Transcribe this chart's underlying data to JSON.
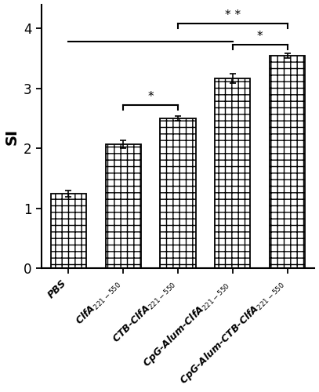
{
  "categories": [
    "PBS",
    "ClfA$_{221-550}$",
    "CTB-ClfA$_{221-550}$",
    "CpG-Alum-ClfA$_{221-550}$",
    "CpG-Alum-CTB-ClfA$_{221-550}$"
  ],
  "values": [
    1.25,
    2.07,
    2.5,
    3.17,
    3.55
  ],
  "errors": [
    0.05,
    0.06,
    0.04,
    0.08,
    0.04
  ],
  "hatch": "++",
  "ylabel": "SI",
  "ylim": [
    0,
    4.4
  ],
  "yticks": [
    0,
    1,
    2,
    3,
    4
  ],
  "background_color": "#ffffff",
  "bar_width": 0.65
}
